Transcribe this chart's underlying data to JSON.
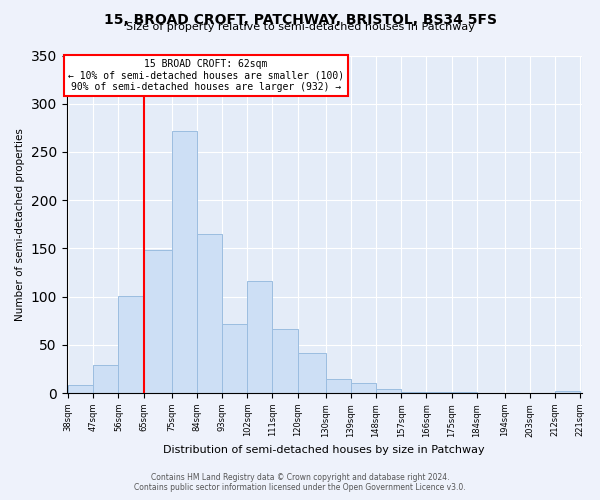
{
  "title": "15, BROAD CROFT, PATCHWAY, BRISTOL, BS34 5FS",
  "subtitle": "Size of property relative to semi-detached houses in Patchway",
  "xlabel": "Distribution of semi-detached houses by size in Patchway",
  "ylabel": "Number of semi-detached properties",
  "bin_labels": [
    "38sqm",
    "47sqm",
    "56sqm",
    "65sqm",
    "75sqm",
    "84sqm",
    "93sqm",
    "102sqm",
    "111sqm",
    "120sqm",
    "130sqm",
    "139sqm",
    "148sqm",
    "157sqm",
    "166sqm",
    "175sqm",
    "184sqm",
    "194sqm",
    "203sqm",
    "212sqm",
    "221sqm"
  ],
  "bar_heights": [
    8,
    29,
    101,
    148,
    272,
    165,
    72,
    116,
    66,
    42,
    15,
    10,
    4,
    1,
    1,
    1,
    0,
    0,
    0,
    2
  ],
  "bar_color": "#cddff5",
  "bar_edge_color": "#9bbde0",
  "bin_edges": [
    38,
    47,
    56,
    65,
    75,
    84,
    93,
    102,
    111,
    120,
    130,
    139,
    148,
    157,
    166,
    175,
    184,
    194,
    203,
    212,
    221
  ],
  "annotation_title": "15 BROAD CROFT: 62sqm",
  "annotation_line1": "← 10% of semi-detached houses are smaller (100)",
  "annotation_line2": "90% of semi-detached houses are larger (932) →",
  "footer1": "Contains HM Land Registry data © Crown copyright and database right 2024.",
  "footer2": "Contains public sector information licensed under the Open Government Licence v3.0.",
  "ylim": [
    0,
    350
  ],
  "background_color": "#eef2fb",
  "plot_background_color": "#e4ecf8"
}
